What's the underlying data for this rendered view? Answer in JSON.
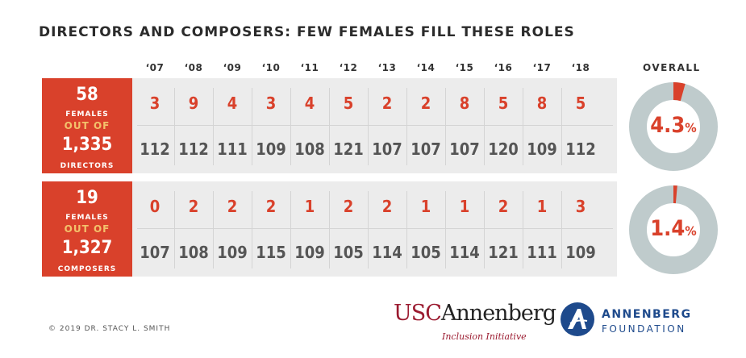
{
  "title": "DIRECTORS AND COMPOSERS: FEW FEMALES FILL THESE ROLES",
  "overall_label": "OVERALL",
  "colors": {
    "accent": "#d9412b",
    "panel": "#ececec",
    "donut_track": "#bfcbcc",
    "highlight": "#f3c26b"
  },
  "chart_data": {
    "type": "table",
    "years": [
      "‘07",
      "‘08",
      "‘09",
      "‘10",
      "‘11",
      "‘12",
      "‘13",
      "‘14",
      "‘15",
      "‘16",
      "‘17",
      "‘18"
    ],
    "groups": [
      {
        "females_count": "58",
        "females_label": "FEMALES",
        "out_of_label": "OUT OF",
        "total": "1,335",
        "role_label": "DIRECTORS",
        "females": [
          3,
          9,
          4,
          3,
          4,
          5,
          2,
          2,
          8,
          5,
          8,
          5
        ],
        "totals": [
          112,
          112,
          111,
          109,
          108,
          121,
          107,
          107,
          107,
          120,
          109,
          112
        ],
        "overall_value": 4.3,
        "overall_num": "4.3",
        "overall_suffix": "%"
      },
      {
        "females_count": "19",
        "females_label": "FEMALES",
        "out_of_label": "OUT OF",
        "total": "1,327",
        "role_label": "COMPOSERS",
        "females": [
          0,
          2,
          2,
          2,
          1,
          2,
          2,
          1,
          1,
          2,
          1,
          3
        ],
        "totals": [
          107,
          108,
          109,
          115,
          109,
          105,
          114,
          105,
          114,
          121,
          111,
          109
        ],
        "overall_value": 1.4,
        "overall_num": "1.4",
        "overall_suffix": "%"
      }
    ]
  },
  "footer": {
    "copyright": "© 2019 DR. STACY L. SMITH",
    "usc_logo_usc": "USC",
    "usc_logo_rest": "Annenberg",
    "usc_sub": "Inclusion Initiative",
    "af_name": "ANNENBERG",
    "af_sub": "FOUNDATION"
  }
}
